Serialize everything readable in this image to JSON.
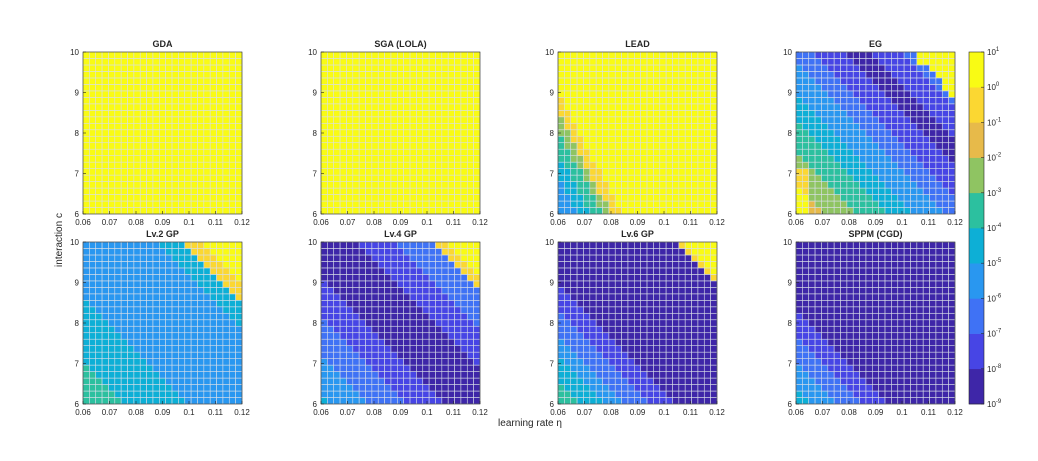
{
  "figure": {
    "xlabel": "learning rate η",
    "ylabel": "interaction c"
  },
  "colors": {
    "colormap": "parula",
    "stops": [
      "#3e26a8",
      "#4745e5",
      "#3f72f5",
      "#2997f0",
      "#0dafd6",
      "#2cc09f",
      "#8fc462",
      "#e7ba4a",
      "#fbd732",
      "#f9fb14"
    ]
  },
  "chart_data": {
    "type": "heatmap",
    "x_range": [
      0.06,
      0.12
    ],
    "y_range": [
      6,
      10
    ],
    "x_ticks": [
      "0.06",
      "0.07",
      "0.08",
      "0.09",
      "0.1",
      "0.11",
      "0.12"
    ],
    "y_ticks": [
      "6",
      "7",
      "8",
      "9",
      "10"
    ],
    "grid": true,
    "colorscale": "log",
    "colorbar_range": [
      1e-09,
      10
    ],
    "colorbar_ticks": [
      {
        "base": "10",
        "exp": "1"
      },
      {
        "base": "10",
        "exp": "0"
      },
      {
        "base": "10",
        "exp": "-1"
      },
      {
        "base": "10",
        "exp": "-2"
      },
      {
        "base": "10",
        "exp": "-3"
      },
      {
        "base": "10",
        "exp": "-4"
      },
      {
        "base": "10",
        "exp": "-5"
      },
      {
        "base": "10",
        "exp": "-6"
      },
      {
        "base": "10",
        "exp": "-7"
      },
      {
        "base": "10",
        "exp": "-8"
      },
      {
        "base": "10",
        "exp": "-9"
      }
    ],
    "grid_resolution": {
      "nx": 25,
      "ny": 25
    },
    "panels": [
      {
        "title": "GDA",
        "trend": "diverges everywhere",
        "log10_value_min": 1,
        "bands": []
      },
      {
        "title": "SGA (LOLA)",
        "trend": "diverges everywhere",
        "log10_value_min": 1,
        "bands": []
      },
      {
        "title": "LEAD",
        "trend": "converges only for small η and small c",
        "diverge_boundary": {
          "eta_at_c6": 0.084,
          "eta_at_c9": 0.06
        },
        "log10_value_min": -6
      },
      {
        "title": "EG",
        "trend": "converges except near η=0.12, c=10",
        "diverge_corner": {
          "eta": 0.11,
          "c": 9.5
        },
        "log10_value_min": -8.5
      },
      {
        "title": "Lv.2 GP",
        "trend": "converges except near η=0.12, c=10",
        "diverge_corner": {
          "eta": 0.1,
          "c": 9.2
        },
        "log10_value_min": -6
      },
      {
        "title": "Lv.4 GP",
        "trend": "fast convergence in diagonal band",
        "diverge_corner": {
          "eta": 0.105,
          "c": 9.5
        },
        "log10_value_min": -9
      },
      {
        "title": "Lv.6 GP",
        "trend": "fast convergence in diagonal band",
        "diverge_corner": {
          "eta": 0.108,
          "c": 9.6
        },
        "log10_value_min": -9
      },
      {
        "title": "SPPM (CGD)",
        "trend": "converges everywhere, fastest for large η and c",
        "log10_value_min": -9
      }
    ]
  }
}
